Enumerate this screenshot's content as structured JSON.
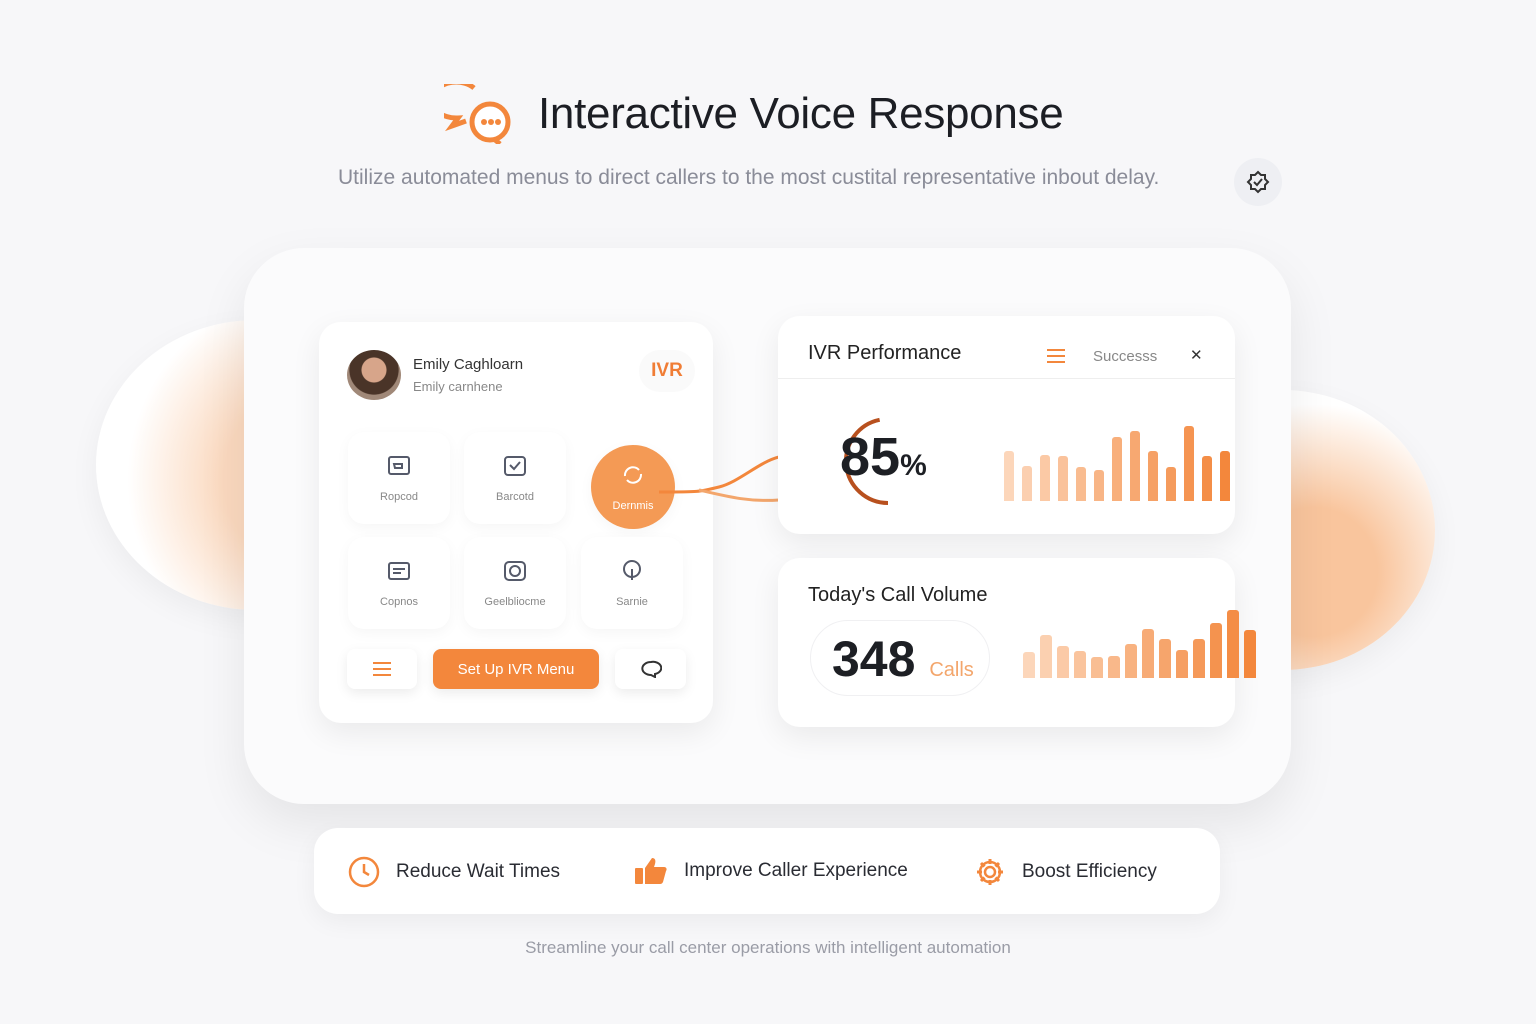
{
  "header": {
    "title": "Interactive Voice Response",
    "subtitle": "Utilize automated menus to direct callers to the most custital representative inbout delay."
  },
  "colors": {
    "accent": "#f3873c",
    "accent_light": "#fbd7bc",
    "text": "#1c1e24"
  },
  "ivr_card": {
    "user_name": "Emily Caghloarn",
    "user_sub": "Emily carnhene",
    "tag": "IVR",
    "tiles": [
      {
        "label": "Ropcod",
        "icon": "inbox-icon"
      },
      {
        "label": "Barcotd",
        "icon": "check-box-icon"
      },
      {
        "label": "Dernmis",
        "icon": "refresh-icon",
        "active": true
      },
      {
        "label": "Copnos",
        "icon": "message-icon"
      },
      {
        "label": "Geelbliocme",
        "icon": "camera-icon"
      },
      {
        "label": "Sarnie",
        "icon": "pin-icon"
      }
    ],
    "setup_label": "Set Up IVR Menu"
  },
  "performance": {
    "title": "IVR Performance",
    "filter_label": "Successs",
    "value": "85",
    "unit": "%",
    "progress": 85
  },
  "volume": {
    "title": "Today's Call Volume",
    "value": "348",
    "unit": "Calls"
  },
  "chart_data": [
    {
      "type": "bar",
      "values": [
        110,
        78,
        102,
        100,
        75,
        68,
        140,
        155,
        110,
        75,
        165,
        100,
        110
      ]
    },
    {
      "type": "bar",
      "values": [
        78,
        128,
        95,
        80,
        63,
        66,
        101,
        146,
        116,
        84,
        116,
        163,
        201,
        143
      ]
    }
  ],
  "benefits": [
    {
      "label": "Reduce Wait Times",
      "icon": "clock-icon"
    },
    {
      "label": "Improve Caller Experience",
      "icon": "thumbs-up-icon"
    },
    {
      "label": "Boost Efficiency",
      "icon": "gear-icon"
    }
  ],
  "footer": "Streamline your call center operations with intelligent automation"
}
